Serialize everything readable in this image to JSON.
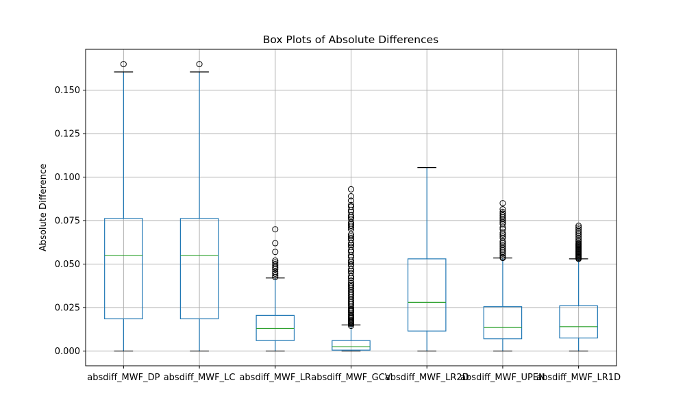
{
  "chart_data": {
    "type": "box",
    "title": "Box Plots of Absolute Differences",
    "xlabel": "",
    "ylabel": "Absolute Difference",
    "ylim": [
      -0.0085,
      0.1735
    ],
    "yticks": [
      0.0,
      0.025,
      0.05,
      0.075,
      0.1,
      0.125,
      0.15
    ],
    "ytick_labels": [
      "0.000",
      "0.025",
      "0.050",
      "0.075",
      "0.100",
      "0.125",
      "0.150"
    ],
    "grid": true,
    "colors": {
      "box": "#1f77b4",
      "median": "#2ca02c",
      "whisker": "#000000",
      "grid": "#b0b0b0"
    },
    "categories": [
      "absdiff_MWF_DP",
      "absdiff_MWF_LC",
      "absdiff_MWF_LR",
      "absdiff_MWF_GCV",
      "absdiff_MWF_LR2D",
      "absdiff_MWF_UPEN",
      "absdiff_MWF_LR1D"
    ],
    "boxes": [
      {
        "whislo": 0.0,
        "q1": 0.0185,
        "med": 0.055,
        "q3": 0.0762,
        "whishi": 0.1605,
        "fliers": [
          0.165
        ]
      },
      {
        "whislo": 0.0,
        "q1": 0.0185,
        "med": 0.055,
        "q3": 0.0762,
        "whishi": 0.1605,
        "fliers": [
          0.165
        ]
      },
      {
        "whislo": 0.0,
        "q1": 0.006,
        "med": 0.013,
        "q3": 0.0205,
        "whishi": 0.042,
        "fliers": [
          0.0425,
          0.0435,
          0.0445,
          0.0455,
          0.047,
          0.048,
          0.049,
          0.05,
          0.051,
          0.052,
          0.057,
          0.062,
          0.07
        ]
      },
      {
        "whislo": 0.0,
        "q1": 0.0005,
        "med": 0.0025,
        "q3": 0.006,
        "whishi": 0.015,
        "fliers": [
          0.0145,
          0.0155,
          0.016,
          0.0165,
          0.017,
          0.0175,
          0.018,
          0.019,
          0.0195,
          0.02,
          0.021,
          0.022,
          0.023,
          0.0235,
          0.024,
          0.025,
          0.026,
          0.027,
          0.028,
          0.029,
          0.03,
          0.031,
          0.032,
          0.033,
          0.034,
          0.035,
          0.036,
          0.037,
          0.038,
          0.039,
          0.0405,
          0.042,
          0.043,
          0.045,
          0.046,
          0.047,
          0.049,
          0.05,
          0.051,
          0.052,
          0.054,
          0.055,
          0.057,
          0.058,
          0.06,
          0.061,
          0.062,
          0.064,
          0.065,
          0.066,
          0.067,
          0.07,
          0.071,
          0.072,
          0.073,
          0.074,
          0.076,
          0.077,
          0.078,
          0.08,
          0.081,
          0.083,
          0.084,
          0.0865,
          0.089,
          0.093
        ]
      },
      {
        "whislo": 0.0,
        "q1": 0.0115,
        "med": 0.028,
        "q3": 0.053,
        "whishi": 0.1055,
        "fliers": []
      },
      {
        "whislo": 0.0,
        "q1": 0.007,
        "med": 0.0135,
        "q3": 0.0255,
        "whishi": 0.0535,
        "fliers": [
          0.0535,
          0.054,
          0.055,
          0.056,
          0.057,
          0.058,
          0.059,
          0.06,
          0.061,
          0.062,
          0.063,
          0.065,
          0.066,
          0.067,
          0.068,
          0.07,
          0.071,
          0.073,
          0.074,
          0.075,
          0.076,
          0.077,
          0.078,
          0.079,
          0.08,
          0.0815,
          0.085
        ]
      },
      {
        "whislo": 0.0,
        "q1": 0.0075,
        "med": 0.014,
        "q3": 0.026,
        "whishi": 0.053,
        "fliers": [
          0.053,
          0.0535,
          0.054,
          0.0545,
          0.055,
          0.0555,
          0.056,
          0.0565,
          0.057,
          0.0575,
          0.058,
          0.0585,
          0.059,
          0.0595,
          0.06,
          0.0605,
          0.061,
          0.0615,
          0.062,
          0.063,
          0.064,
          0.065,
          0.066,
          0.067,
          0.068,
          0.069,
          0.07,
          0.071,
          0.072
        ]
      }
    ]
  }
}
